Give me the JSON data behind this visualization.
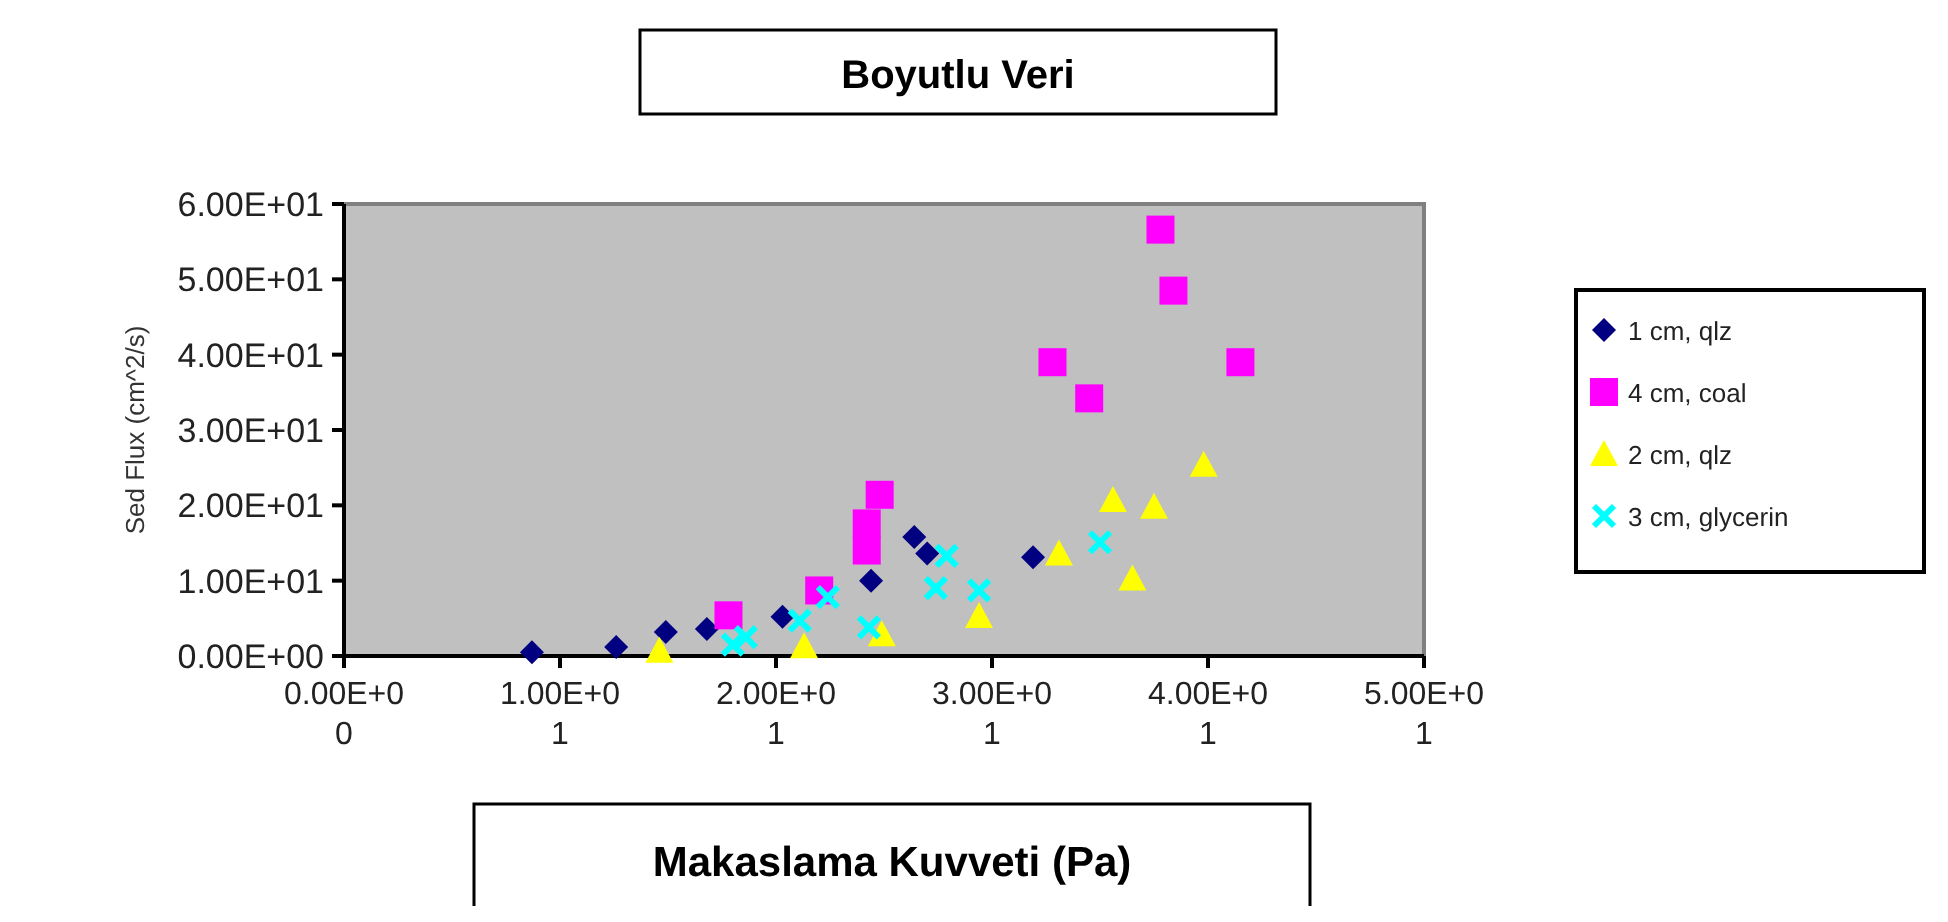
{
  "chart_data": {
    "type": "scatter",
    "title": "Boyutlu Veri",
    "xlabel": "Makaslama Kuvveti (Pa)",
    "ylabel": "Sed Flux (cm^2/s)",
    "xlim": [
      0,
      50
    ],
    "xticks": [
      {
        "value": 0,
        "label": "0.00E+00"
      },
      {
        "value": 10,
        "label": "1.00E+01"
      },
      {
        "value": 20,
        "label": "2.00E+01"
      },
      {
        "value": 30,
        "label": "3.00E+01"
      },
      {
        "value": 40,
        "label": "4.00E+01"
      },
      {
        "value": 50,
        "label": "5.00E+01"
      }
    ],
    "ylim": [
      0,
      60
    ],
    "yticks": [
      {
        "value": 0,
        "label": "0.00E+00"
      },
      {
        "value": 10,
        "label": "1.00E+01"
      },
      {
        "value": 20,
        "label": "2.00E+01"
      },
      {
        "value": 30,
        "label": "3.00E+01"
      },
      {
        "value": 40,
        "label": "4.00E+01"
      },
      {
        "value": 50,
        "label": "5.00E+01"
      },
      {
        "value": 60,
        "label": "6.00E+01"
      }
    ],
    "grid": false,
    "legend": "right",
    "series": [
      {
        "name": "1 cm, qlz",
        "color": "#000080",
        "marker": "diamond",
        "x": [
          8.7,
          12.6,
          14.9,
          16.8,
          20.3,
          24.4,
          26.4,
          27,
          31.9
        ],
        "values": [
          0.5,
          1.2,
          3.2,
          3.6,
          5.2,
          10,
          15.8,
          13.6,
          13.1
        ]
      },
      {
        "name": "4 cm, coal",
        "color": "#ff00ff",
        "marker": "square",
        "x": [
          17.8,
          22,
          24.2,
          24.2,
          24.8,
          32.8,
          34.5,
          37.8,
          38.4,
          41.5
        ],
        "values": [
          5.4,
          8.7,
          17.6,
          14,
          21.4,
          39,
          34.2,
          56.6,
          48.5,
          39
        ]
      },
      {
        "name": "2 cm, qlz",
        "color": "#ffff00",
        "marker": "triangle",
        "x": [
          14.6,
          21.3,
          24.9,
          29.4,
          33.1,
          35.6,
          36.5,
          37.5,
          39.8
        ],
        "values": [
          0.7,
          1.3,
          2.9,
          5.3,
          13.6,
          20.7,
          10.3,
          19.8,
          25.4
        ]
      },
      {
        "name": "3 cm, glycerin",
        "color": "#00ffff",
        "marker": "cross",
        "x": [
          18,
          18.6,
          21.1,
          22.4,
          24.3,
          27.4,
          27.9,
          29.4,
          35
        ],
        "values": [
          1.5,
          2.5,
          4.7,
          7.8,
          3.8,
          9,
          13.3,
          8.7,
          15.1
        ]
      }
    ]
  }
}
